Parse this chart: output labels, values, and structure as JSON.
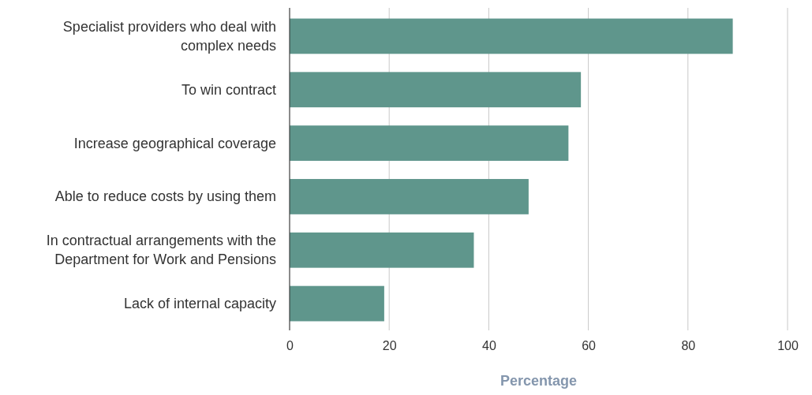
{
  "chart_data": {
    "type": "bar",
    "orientation": "horizontal",
    "xlabel": "Percentage",
    "categories": [
      "Specialist providers who deal with complex needs",
      "To win contract",
      "Increase geographical coverage",
      "Able to reduce costs by using them",
      "In contractual arrangements with the Department for Work and Pensions",
      "Lack of internal capacity"
    ],
    "values": [
      89,
      58.5,
      56,
      48,
      37,
      19
    ],
    "color": "#5f968c",
    "xlim": [
      0,
      100
    ],
    "xticks": [
      0,
      20,
      40,
      60,
      80,
      100
    ],
    "grid": "x"
  }
}
